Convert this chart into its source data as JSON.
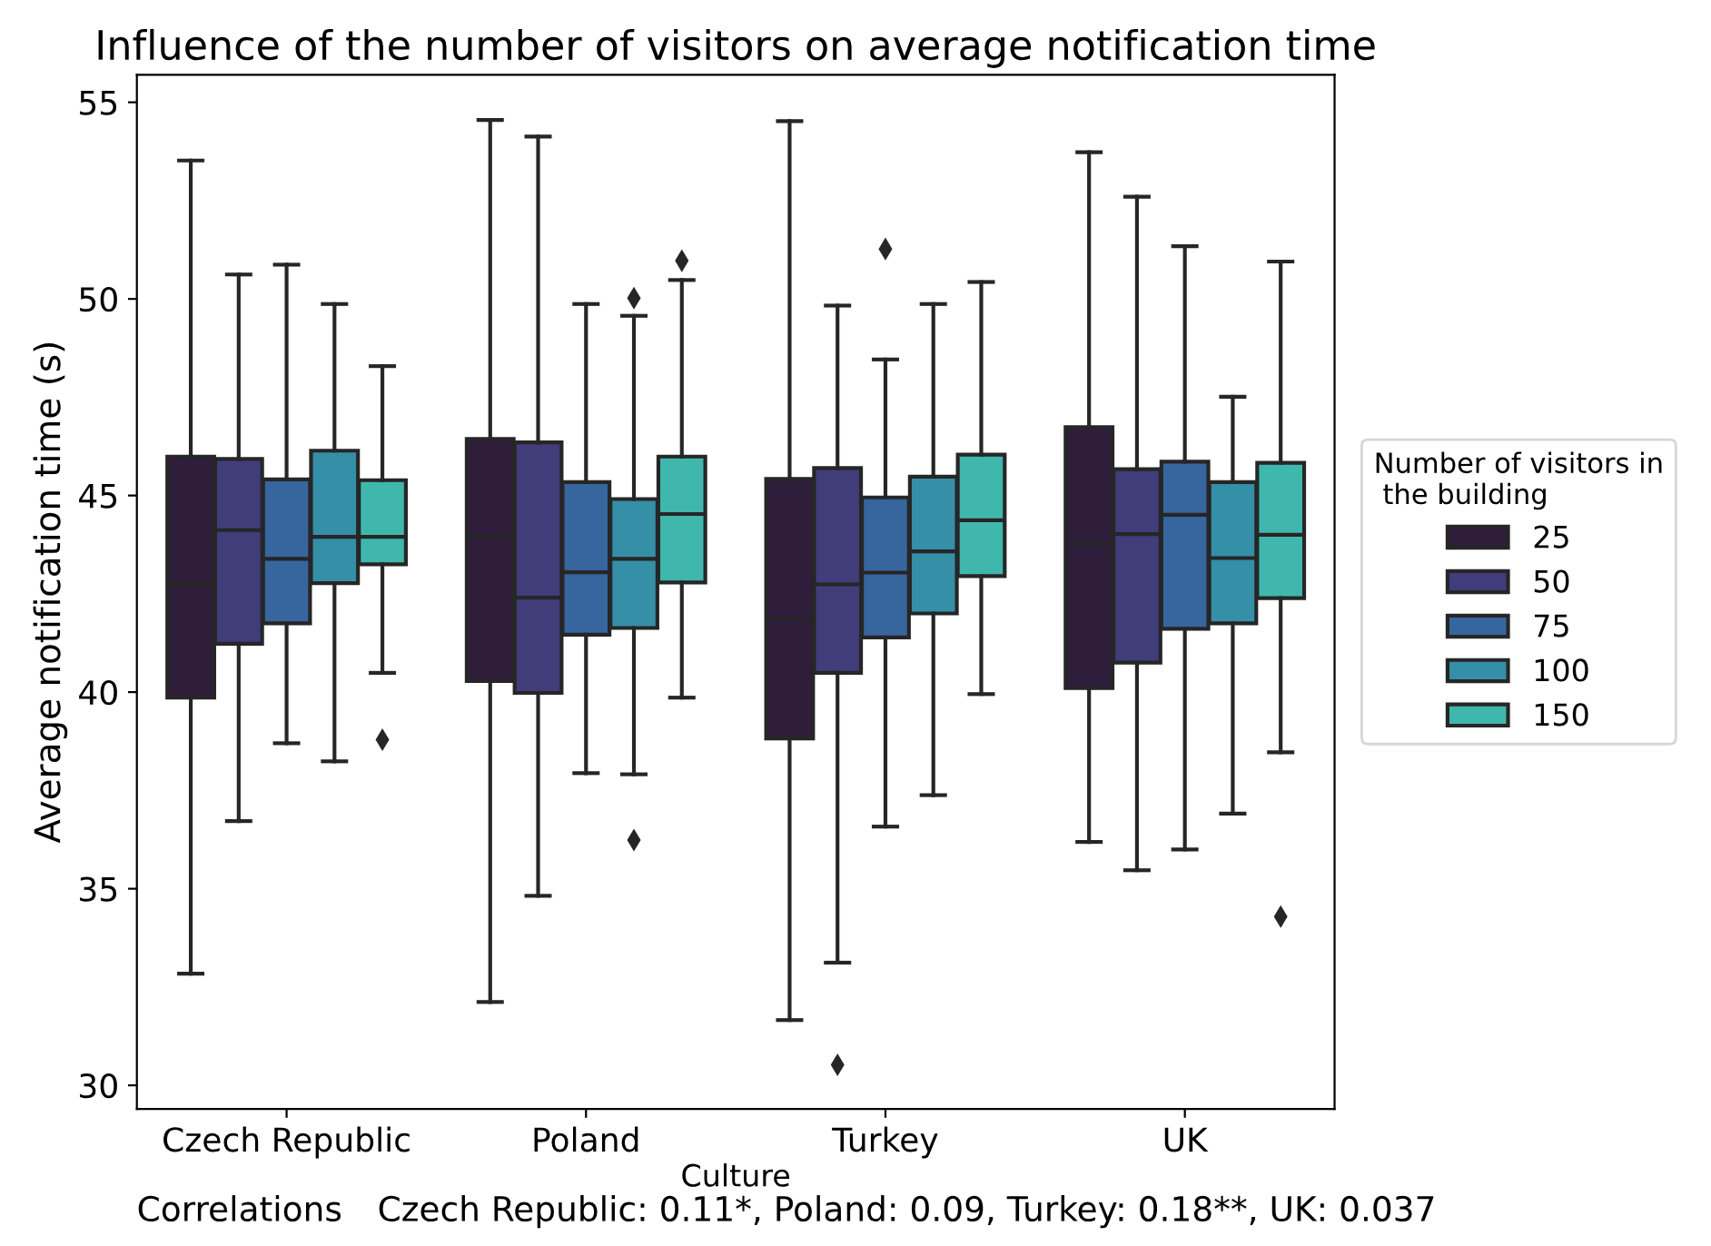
{
  "chart_data": {
    "type": "box",
    "title": "Influence of the number of visitors on average notification time",
    "xlabel": "Culture",
    "ylabel": "Average notification time (s)",
    "legend_title": "Number of visitors in\n the building",
    "legend": "right",
    "grid": false,
    "marker": "diamond",
    "categories": [
      "Czech Republic",
      "Poland",
      "Turkey",
      "UK"
    ],
    "ylim": [
      29.4,
      55.7
    ],
    "yticks": [
      30,
      35,
      40,
      45,
      50,
      55
    ],
    "annotations": [
      "Correlations",
      "Czech Republic: 0.11*, Poland: 0.09, Turkey: 0.18**, UK: 0.037"
    ],
    "series": [
      {
        "name": "25",
        "color": "#2e1e3b",
        "boxes": [
          {
            "low": 32.84,
            "q1": 39.86,
            "median": 42.76,
            "q3": 45.99,
            "high": 53.52
          },
          {
            "low": 32.12,
            "q1": 40.28,
            "median": 43.95,
            "q3": 46.44,
            "high": 54.55
          },
          {
            "low": 31.66,
            "q1": 38.82,
            "median": 41.86,
            "q3": 45.42,
            "high": 54.52
          },
          {
            "low": 36.19,
            "q1": 40.1,
            "median": 43.77,
            "q3": 46.74,
            "high": 53.73
          }
        ]
      },
      {
        "name": "50",
        "color": "#413d7b",
        "boxes": [
          {
            "low": 36.72,
            "q1": 41.23,
            "median": 44.12,
            "q3": 45.93,
            "high": 50.62
          },
          {
            "low": 34.82,
            "q1": 39.98,
            "median": 42.4,
            "q3": 46.35,
            "high": 54.13
          },
          {
            "low": 33.12,
            "q1": 40.49,
            "median": 42.74,
            "q3": 45.7,
            "high": 49.83,
            "outliers": [
              30.52
            ]
          },
          {
            "low": 35.47,
            "q1": 40.75,
            "median": 44.02,
            "q3": 45.67,
            "high": 52.6
          }
        ]
      },
      {
        "name": "75",
        "color": "#37659e",
        "boxes": [
          {
            "low": 38.7,
            "q1": 41.75,
            "median": 43.39,
            "q3": 45.41,
            "high": 50.87
          },
          {
            "low": 37.94,
            "q1": 41.46,
            "median": 43.05,
            "q3": 45.34,
            "high": 49.87
          },
          {
            "low": 36.58,
            "q1": 41.39,
            "median": 43.04,
            "q3": 44.95,
            "high": 48.46,
            "outliers": [
              51.27
            ]
          },
          {
            "low": 36.0,
            "q1": 41.61,
            "median": 44.51,
            "q3": 45.86,
            "high": 51.34
          }
        ]
      },
      {
        "name": "100",
        "color": "#348fa7",
        "boxes": [
          {
            "low": 38.24,
            "q1": 42.77,
            "median": 43.95,
            "q3": 46.14,
            "high": 49.87
          },
          {
            "low": 37.91,
            "q1": 41.63,
            "median": 43.39,
            "q3": 44.91,
            "high": 49.57,
            "outliers": [
              50.02,
              36.24
            ]
          },
          {
            "low": 37.38,
            "q1": 42.0,
            "median": 43.58,
            "q3": 45.48,
            "high": 49.87
          },
          {
            "low": 36.91,
            "q1": 41.75,
            "median": 43.41,
            "q3": 45.34,
            "high": 47.51
          }
        ]
      },
      {
        "name": "150",
        "color": "#40b7ad",
        "boxes": [
          {
            "low": 40.49,
            "q1": 43.25,
            "median": 43.95,
            "q3": 45.39,
            "high": 48.29,
            "outliers": [
              38.79
            ]
          },
          {
            "low": 39.86,
            "q1": 42.79,
            "median": 44.53,
            "q3": 45.99,
            "high": 50.48,
            "outliers": [
              50.97
            ]
          },
          {
            "low": 39.95,
            "q1": 42.95,
            "median": 44.37,
            "q3": 46.04,
            "high": 50.43
          },
          {
            "low": 38.47,
            "q1": 42.39,
            "median": 44.0,
            "q3": 45.83,
            "high": 50.95,
            "outliers": [
              34.29
            ]
          }
        ]
      }
    ]
  }
}
